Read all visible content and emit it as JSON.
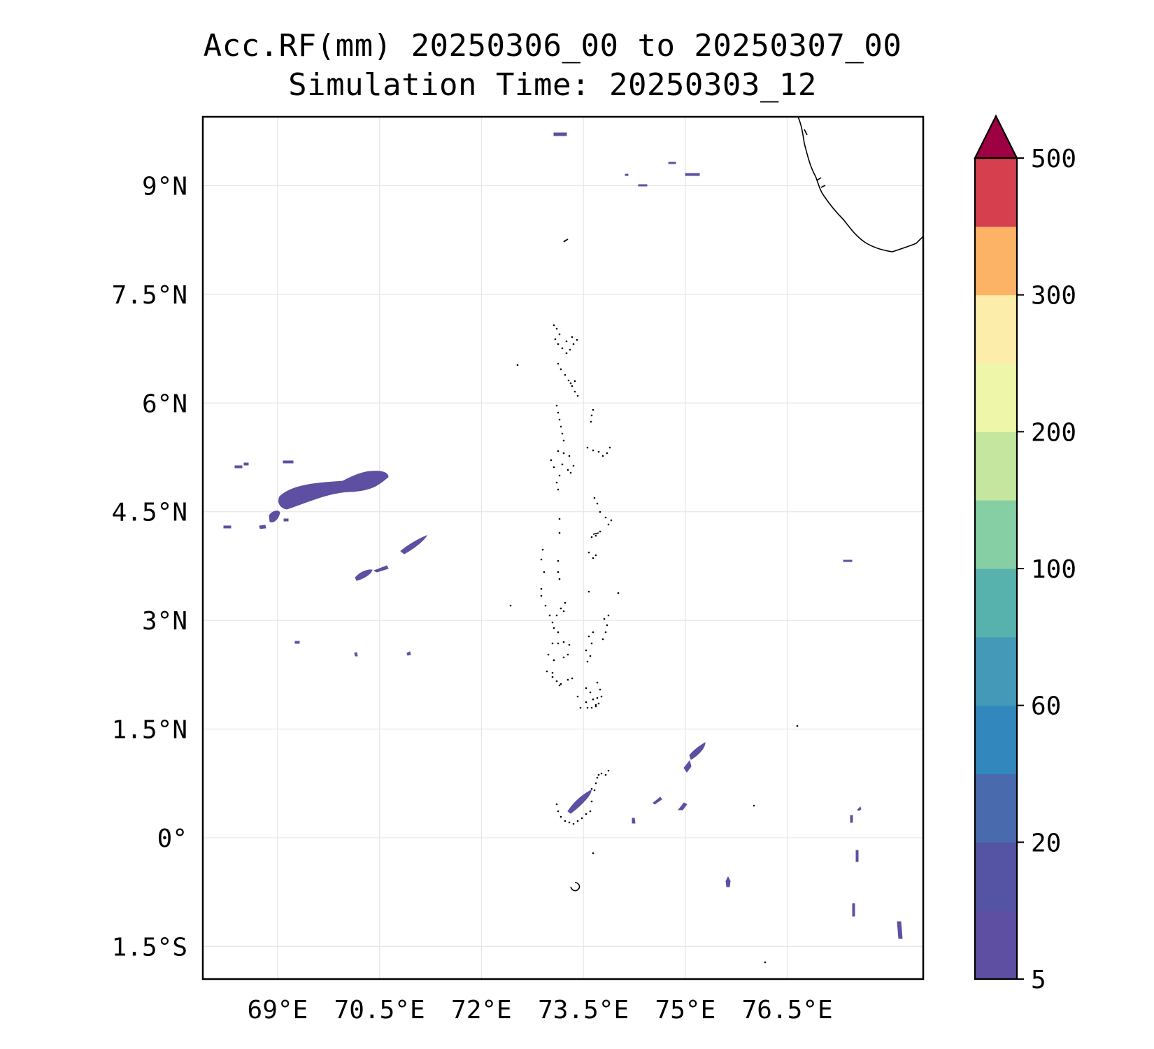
{
  "title": {
    "line1": "Acc.RF(mm) 20250306_00 to 20250307_00",
    "line2": "Simulation Time: 20250303_12"
  },
  "map": {
    "lon_range": [
      67.9,
      78.5
    ],
    "lat_range": [
      -1.95,
      9.95
    ],
    "x_ticks": [
      {
        "lon": 69.0,
        "label": "69°E"
      },
      {
        "lon": 70.5,
        "label": "70.5°E"
      },
      {
        "lon": 72.0,
        "label": "72°E"
      },
      {
        "lon": 73.5,
        "label": "73.5°E"
      },
      {
        "lon": 75.0,
        "label": "75°E"
      },
      {
        "lon": 76.5,
        "label": "76.5°E"
      }
    ],
    "y_ticks": [
      {
        "lat": 9.0,
        "label": "9°N"
      },
      {
        "lat": 7.5,
        "label": "7.5°N"
      },
      {
        "lat": 6.0,
        "label": "6°N"
      },
      {
        "lat": 4.5,
        "label": "4.5°N"
      },
      {
        "lat": 3.0,
        "label": "3°N"
      },
      {
        "lat": 1.5,
        "label": "1.5°N"
      },
      {
        "lat": 0.0,
        "label": "0°"
      },
      {
        "lat": -1.5,
        "label": "1.5°S"
      }
    ],
    "gridlines": true,
    "rain_color": "#5e4fa2"
  },
  "colorbar": {
    "colors": [
      "#5e4fa2",
      "#5453a4",
      "#4a6aae",
      "#3288bd",
      "#4499b8",
      "#57b2ad",
      "#86cfa5",
      "#c4e69e",
      "#eef6a9",
      "#fdedaa",
      "#fdb365",
      "#d6404e"
    ],
    "extend_color": "#9e0142",
    "tick_labels": [
      {
        "label": "5",
        "index": 0
      },
      {
        "label": "20",
        "index": 2
      },
      {
        "label": "60",
        "index": 4
      },
      {
        "label": "100",
        "index": 6
      },
      {
        "label": "200",
        "index": 8
      },
      {
        "label": "300",
        "index": 10
      },
      {
        "label": "500",
        "index": 12
      }
    ]
  }
}
